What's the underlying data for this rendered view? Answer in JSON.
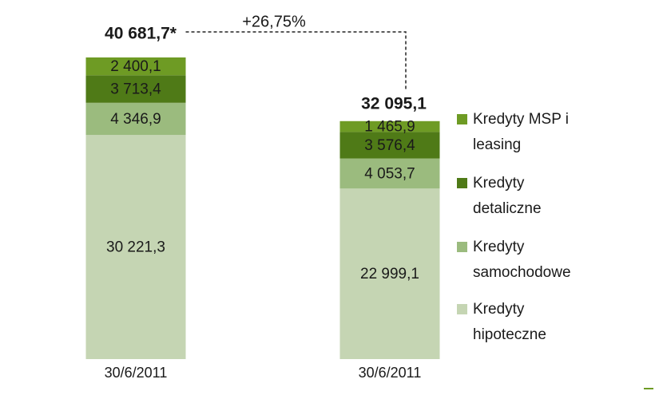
{
  "chart_data": {
    "type": "bar",
    "stacked": true,
    "categories": [
      "30/6/2011",
      "30/6/2011"
    ],
    "series": [
      {
        "name": "Kredyty hipoteczne",
        "color": "#c5d5b3",
        "values": [
          30221.3,
          22999.1
        ],
        "value_labels": [
          "30 221,3",
          "22 999,1"
        ]
      },
      {
        "name": "Kredyty samochodowe",
        "color": "#9bbb7e",
        "values": [
          4346.9,
          4053.7
        ],
        "value_labels": [
          "4 346,9",
          "4 053,7"
        ]
      },
      {
        "name": "Kredyty detaliczne",
        "color": "#4f7a17",
        "values": [
          3713.4,
          3576.4
        ],
        "value_labels": [
          "3 713,4",
          "3 576,4"
        ]
      },
      {
        "name": "Kredyty MSP i leasing",
        "color": "#6e9b24",
        "values": [
          2400.1,
          1465.9
        ],
        "value_labels": [
          "2 400,1",
          "1 465,9"
        ]
      }
    ],
    "totals": [
      40681.7,
      32095.1
    ],
    "total_labels": [
      "40 681,7*",
      "32 095,1"
    ],
    "annotation": "+26,75%"
  }
}
